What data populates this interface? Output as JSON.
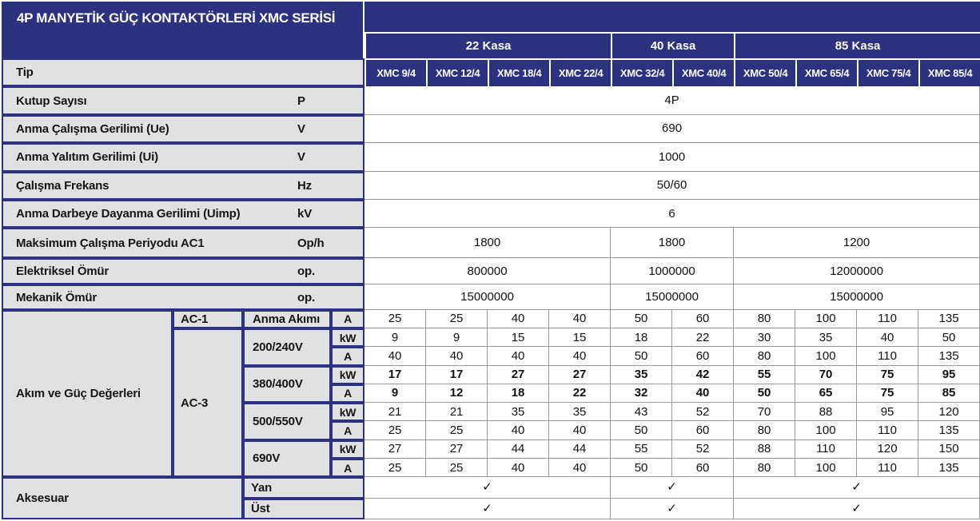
{
  "colors": {
    "blue": "#2c3180",
    "cell_bg": "#e1e1e3",
    "grid_line": "#9a9a9a"
  },
  "title": "4P MANYETİK GÜÇ KONTAKTÖRLERİ XMC SERİSİ",
  "kasa_row": {
    "labels": [
      "22 Kasa",
      "40 Kasa",
      "85 Kasa"
    ]
  },
  "tip_label": "Tip",
  "models": [
    "XMC 9/4",
    "XMC 12/4",
    "XMC 18/4",
    "XMC 22/4",
    "XMC 32/4",
    "XMC 40/4",
    "XMC 50/4",
    "XMC 65/4",
    "XMC 75/4",
    "XMC 85/4"
  ],
  "specs": {
    "kutup": {
      "label": "Kutup Sayısı",
      "unit": "P",
      "value": "4P"
    },
    "ue": {
      "label": "Anma Çalışma Gerilimi (Ue)",
      "unit": "V",
      "value": "690"
    },
    "ui": {
      "label": "Anma Yalıtım Gerilimi (Ui)",
      "unit": "V",
      "value": "1000"
    },
    "frekans": {
      "label": "Çalışma Frekans",
      "unit": "Hz",
      "value": "50/60"
    },
    "uimp": {
      "label": "Anma Darbeye Dayanma Gerilimi (Uimp)",
      "unit": "kV",
      "value": "6"
    },
    "periyot": {
      "label": "Maksimum Çalışma Periyodu AC1",
      "unit": "Op/h",
      "values": [
        "1800",
        "1800",
        "1200"
      ]
    },
    "elektriksel": {
      "label": "Elektriksel Ömür",
      "unit": "op.",
      "values": [
        "800000",
        "1000000",
        "12000000"
      ]
    },
    "mekanik": {
      "label": "Mekanik Ömür",
      "unit": "op.",
      "values": [
        "15000000",
        "15000000",
        "15000000"
      ]
    }
  },
  "power": {
    "label": "Akım ve Güç Değerleri",
    "units": {
      "kw": "kW",
      "a": "A"
    },
    "ac1": {
      "label": "AC-1",
      "name": "Anma Akımı",
      "values": [
        "25",
        "25",
        "40",
        "40",
        "50",
        "60",
        "80",
        "100",
        "110",
        "135"
      ]
    },
    "ac3": {
      "label": "AC-3",
      "v200": {
        "label": "200/240V",
        "kw": [
          "9",
          "9",
          "15",
          "15",
          "18",
          "22",
          "30",
          "35",
          "40",
          "50"
        ],
        "a": [
          "40",
          "40",
          "40",
          "40",
          "50",
          "60",
          "80",
          "100",
          "110",
          "135"
        ]
      },
      "v380": {
        "label": "380/400V",
        "kw": [
          "17",
          "17",
          "27",
          "27",
          "35",
          "42",
          "55",
          "70",
          "75",
          "95"
        ],
        "a": [
          "9",
          "12",
          "18",
          "22",
          "32",
          "40",
          "50",
          "65",
          "75",
          "85"
        ]
      },
      "v500": {
        "label": "500/550V",
        "kw": [
          "21",
          "21",
          "35",
          "35",
          "43",
          "52",
          "70",
          "88",
          "95",
          "120"
        ],
        "a": [
          "25",
          "25",
          "40",
          "40",
          "50",
          "60",
          "80",
          "100",
          "110",
          "135"
        ]
      },
      "v690": {
        "label": "690V",
        "kw": [
          "27",
          "27",
          "44",
          "44",
          "55",
          "52",
          "88",
          "110",
          "120",
          "150"
        ],
        "a": [
          "25",
          "25",
          "40",
          "40",
          "50",
          "60",
          "80",
          "100",
          "110",
          "135"
        ]
      }
    }
  },
  "accessories": {
    "label": "Aksesuar",
    "yan": {
      "label": "Yan",
      "checks": [
        "✓",
        "✓",
        "✓"
      ]
    },
    "ust": {
      "label": "Üst",
      "checks": [
        "✓",
        "✓",
        "✓"
      ]
    }
  }
}
